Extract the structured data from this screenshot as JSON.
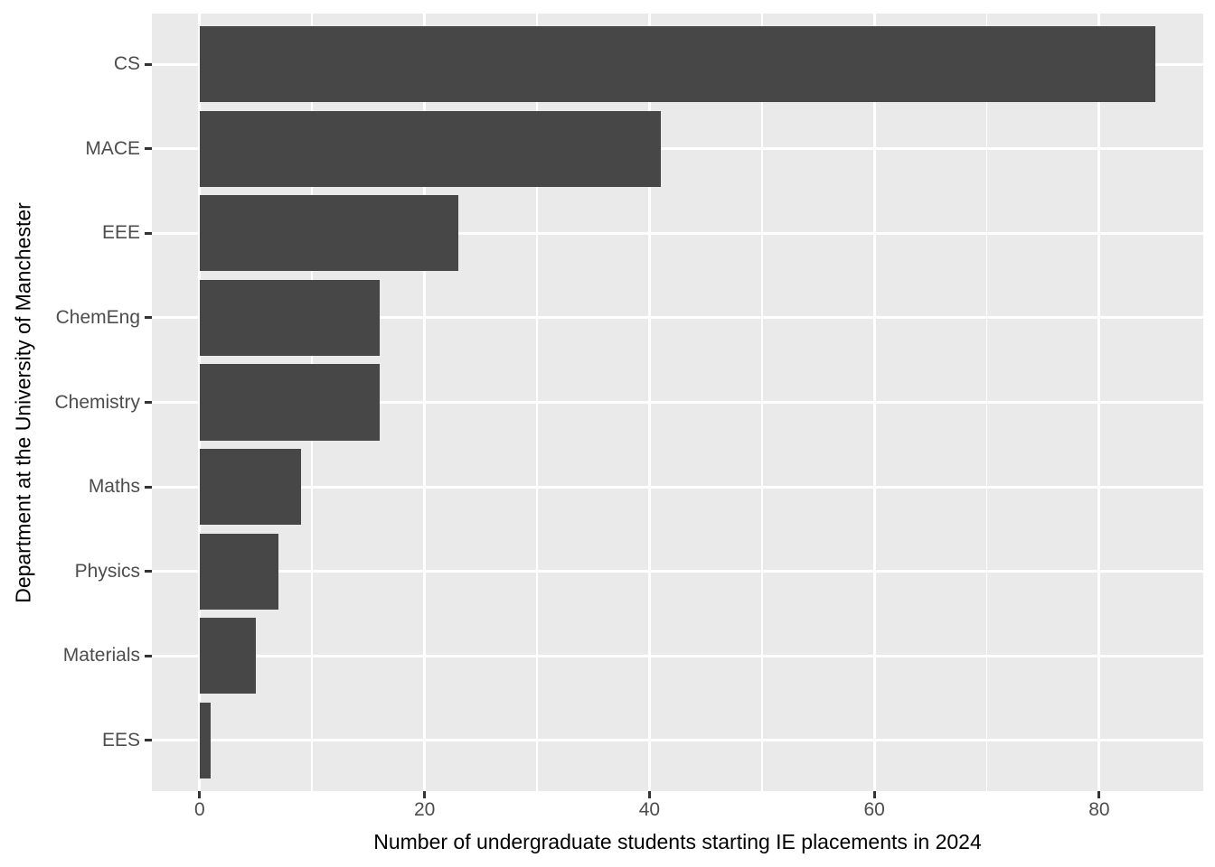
{
  "chart_data": {
    "type": "bar",
    "orientation": "horizontal",
    "title": "",
    "categories": [
      "CS",
      "MACE",
      "EEE",
      "ChemEng",
      "Chemistry",
      "Maths",
      "Physics",
      "Materials",
      "EES"
    ],
    "values": [
      85,
      41,
      23,
      16,
      16,
      9,
      7,
      5,
      1
    ],
    "xlabel": "Number of undergraduate students starting IE placements in 2024",
    "ylabel": "Department at the University of Manchester",
    "x_tick_labels": [
      "0",
      "20",
      "40",
      "60",
      "80"
    ],
    "x_major_ticks": [
      0,
      20,
      40,
      60,
      80
    ],
    "x_minor_ticks": [
      10,
      30,
      50,
      70
    ],
    "xlim": [
      -4.25,
      89.25
    ],
    "bar_width_fraction": 0.9,
    "grid": "on",
    "legend_position": "none",
    "colors": {
      "bar_fill": "#474747",
      "panel_background": "#EAEAEA",
      "gridline": "#FFFFFF",
      "tick_label": "#4D4D4D",
      "axis_title": "#000000",
      "tick_mark": "#333333",
      "page_background": "#FFFFFF"
    }
  }
}
